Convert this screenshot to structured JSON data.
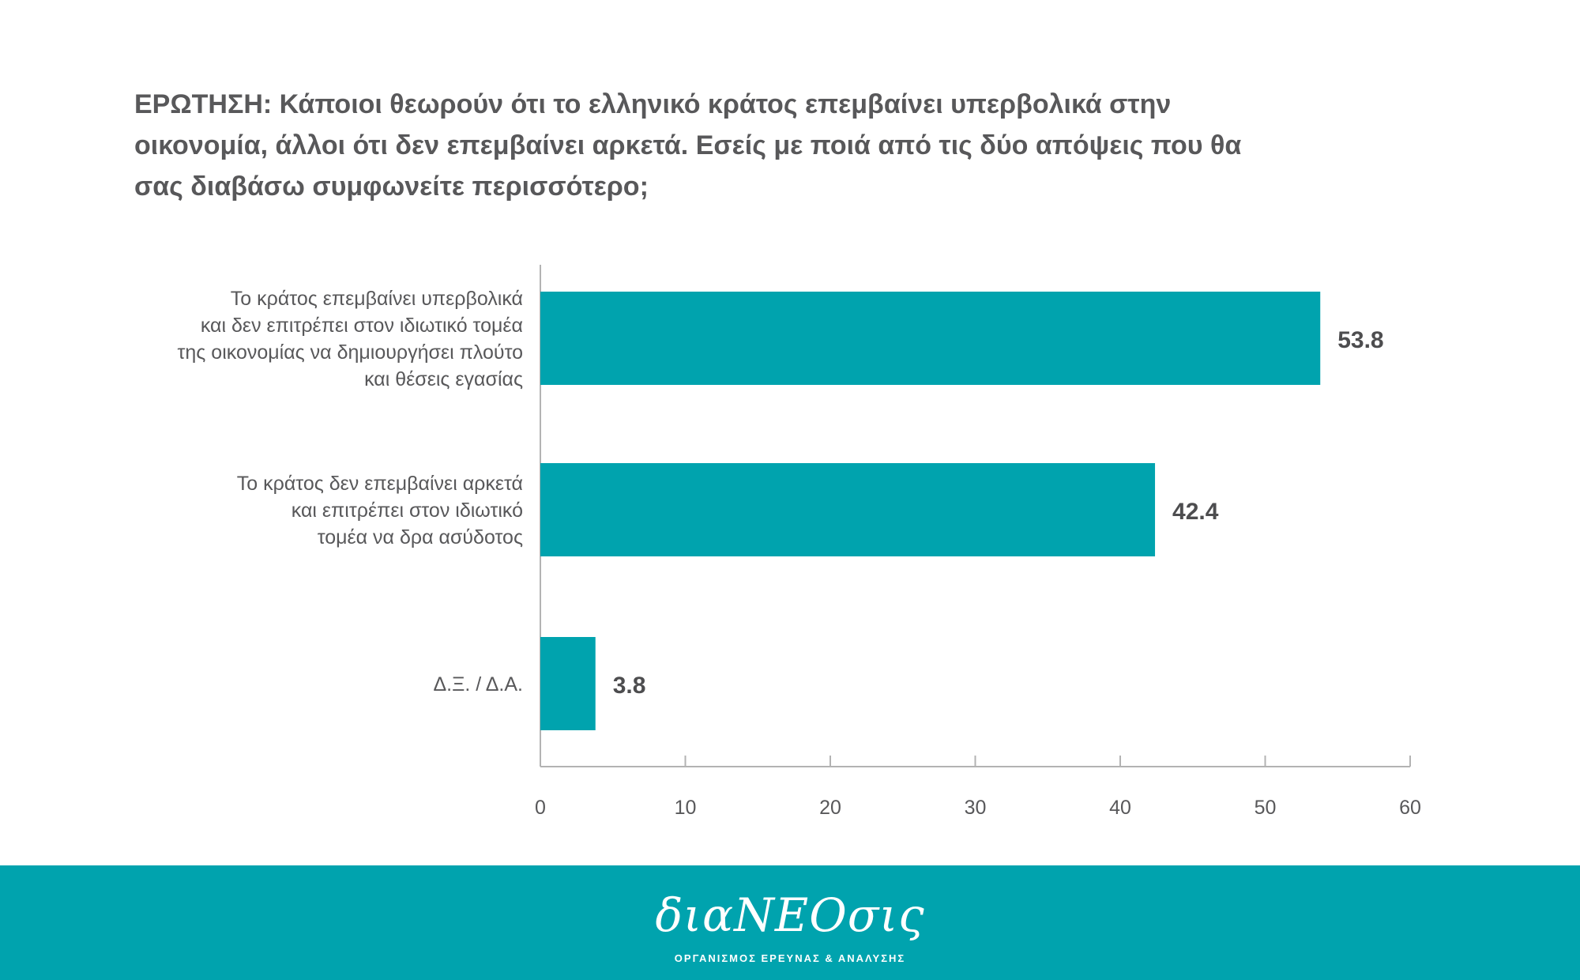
{
  "question": "ΕΡΩΤΗΣΗ: Κάποιοι θεωρούν ότι το ελληνικό κράτος επεμβαίνει υπερβολικά στην οικονομία, άλλοι ότι δεν επεμβαίνει αρκετά. Εσείς με ποιά από τις δύο απόψεις που θα σας διαβάσω συμφωνείτε περισσότερο;",
  "chart_data": {
    "type": "bar",
    "orientation": "horizontal",
    "categories": [
      [
        "Το κράτος επεμβαίνει υπερβολικά",
        "και δεν επιτρέπει στον ιδιωτικό τομέα",
        "της οικονομίας να δημιουργήσει πλούτο",
        "και θέσεις εγασίας"
      ],
      [
        "Το κράτος δεν επεμβαίνει αρκετά",
        "και επιτρέπει στον ιδιωτικό",
        "τομέα να δρα ασύδοτος"
      ],
      [
        "Δ.Ξ. / Δ.Α."
      ]
    ],
    "values": [
      53.8,
      42.4,
      3.8
    ],
    "value_labels": [
      "53.8",
      "42.4",
      "3.8"
    ],
    "xlim": [
      0,
      60
    ],
    "xticks": [
      0,
      10,
      20,
      30,
      40,
      50,
      60
    ],
    "grid": false,
    "legend": "none",
    "bar_color": "#00a3ae",
    "axis_color": "#b3b3b3"
  },
  "footer": {
    "logo_text": "διαΝΕΟσις",
    "tagline": "ΟΡΓΑΝΙΣΜΟΣ ΕΡΕΥΝΑΣ & ΑΝΑΛΥΣΗΣ",
    "background_color": "#00a3ae"
  }
}
